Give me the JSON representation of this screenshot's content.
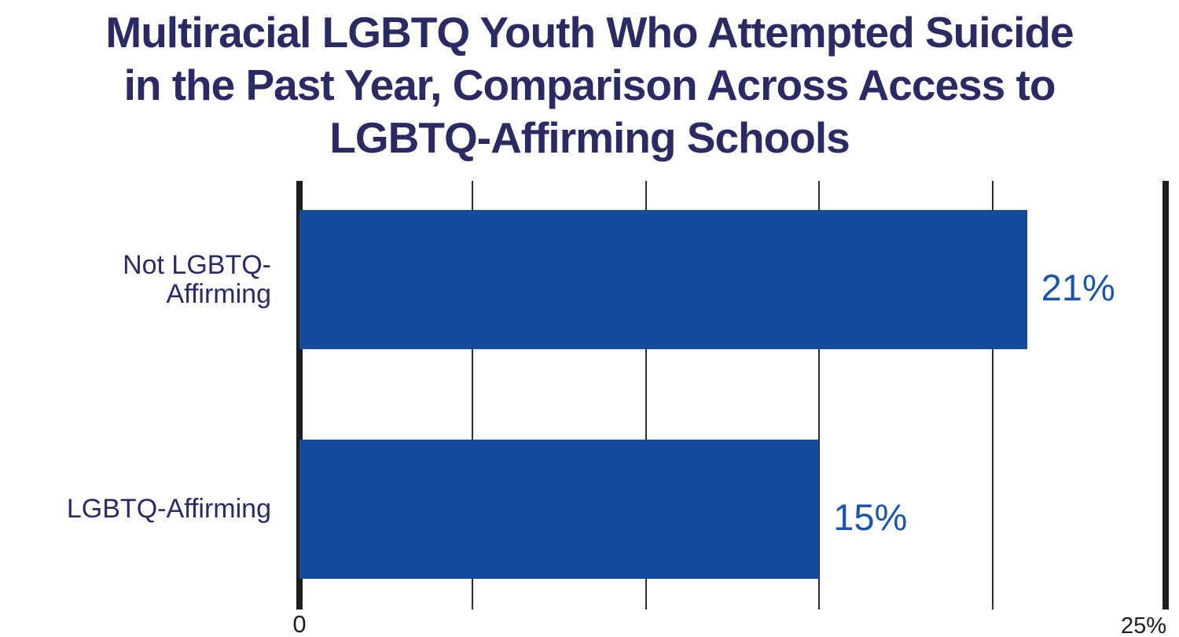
{
  "chart_data": {
    "type": "bar",
    "orientation": "horizontal",
    "title": "Multiracial LGBTQ Youth Who Attempted Suicide in the Past Year, Comparison Across Access to LGBTQ-Affirming Schools",
    "title_lines": [
      "Multiracial LGBTQ Youth Who Attempted Suicide",
      "in the Past Year, Comparison Across Access to",
      "LGBTQ-Affirming Schools"
    ],
    "categories": [
      "Not LGBTQ-Affirming",
      "LGBTQ-Affirming"
    ],
    "category_label_lines": [
      [
        "Not LGBTQ-",
        "Affirming"
      ],
      [
        "LGBTQ-Affirming"
      ]
    ],
    "values": [
      21,
      15
    ],
    "value_labels": [
      "21%",
      "15%"
    ],
    "xlabel": "",
    "ylabel": "",
    "xlim": [
      0,
      25
    ],
    "x_tick_labels": {
      "min": "0",
      "max": "25%"
    },
    "gridline_values": [
      5,
      10,
      15,
      20
    ],
    "grid": "vertical",
    "legend": "none",
    "colors": {
      "bar": "#164A9C",
      "value_label": "#1A55A9",
      "title": "#2B2A63",
      "category_label": "#2B2A63",
      "axis_line": "#1E1E1E",
      "gridline": "#2E2E2E",
      "tick_label": "#1D1D1D",
      "background": "#FFFFFF"
    }
  }
}
